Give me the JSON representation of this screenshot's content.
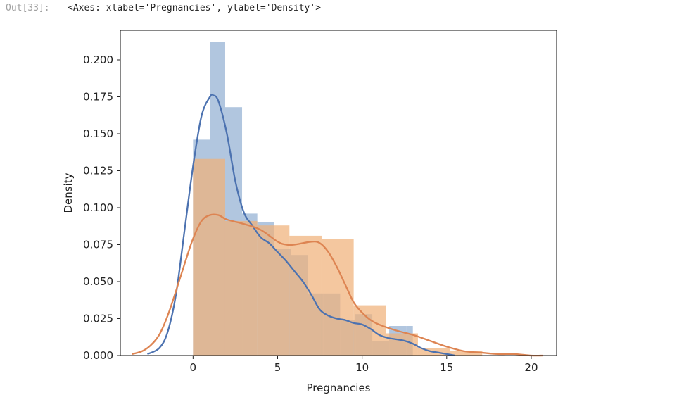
{
  "cell": {
    "prompt": "Out[33]:",
    "output": "<Axes: xlabel='Pregnancies', ylabel='Density'>"
  },
  "chart_data": {
    "type": "bar",
    "xlabel": "Pregnancies",
    "ylabel": "Density",
    "xlim": [
      -4.3,
      21.5
    ],
    "ylim": [
      0,
      0.22
    ],
    "xticks": [
      0,
      5,
      10,
      15,
      20
    ],
    "yticks": [
      0.0,
      0.025,
      0.05,
      0.075,
      0.1,
      0.125,
      0.15,
      0.175,
      0.2
    ],
    "grid": false,
    "legend": "none",
    "series": [
      {
        "color": "#4c72b0",
        "hist_color": "#a8c0dc",
        "hist_bins": [
          {
            "x0": 0.0,
            "x1": 1.0,
            "y": 0.146
          },
          {
            "x0": 1.0,
            "x1": 1.9,
            "y": 0.212
          },
          {
            "x0": 1.9,
            "x1": 2.9,
            "y": 0.168
          },
          {
            "x0": 2.9,
            "x1": 3.8,
            "y": 0.096
          },
          {
            "x0": 3.8,
            "x1": 4.8,
            "y": 0.09
          },
          {
            "x0": 4.8,
            "x1": 5.8,
            "y": 0.072
          },
          {
            "x0": 5.8,
            "x1": 6.8,
            "y": 0.068
          },
          {
            "x0": 6.8,
            "x1": 7.7,
            "y": 0.042
          },
          {
            "x0": 7.7,
            "x1": 8.7,
            "y": 0.042
          },
          {
            "x0": 8.7,
            "x1": 9.6,
            "y": 0.024
          },
          {
            "x0": 9.6,
            "x1": 10.6,
            "y": 0.028
          },
          {
            "x0": 10.6,
            "x1": 11.6,
            "y": 0.01
          },
          {
            "x0": 11.6,
            "x1": 12.6,
            "y": 0.02
          },
          {
            "x0": 12.6,
            "x1": 13.0,
            "y": 0.02
          }
        ],
        "kde_x": [
          -2.7,
          -2.0,
          -1.5,
          -1.0,
          -0.5,
          0.0,
          0.5,
          1.0,
          1.2,
          1.5,
          2.0,
          2.5,
          3.0,
          3.5,
          4.0,
          4.5,
          5.0,
          5.5,
          6.0,
          6.5,
          7.0,
          7.5,
          8.0,
          8.5,
          9.0,
          9.5,
          10.0,
          10.5,
          11.0,
          11.5,
          12.0,
          12.5,
          13.0,
          13.5,
          14.0,
          14.5,
          15.0,
          15.5
        ],
        "kde_y": [
          0.001,
          0.005,
          0.016,
          0.042,
          0.085,
          0.128,
          0.162,
          0.175,
          0.176,
          0.172,
          0.15,
          0.118,
          0.097,
          0.088,
          0.08,
          0.076,
          0.07,
          0.064,
          0.057,
          0.05,
          0.041,
          0.031,
          0.027,
          0.025,
          0.024,
          0.022,
          0.021,
          0.018,
          0.014,
          0.012,
          0.011,
          0.01,
          0.008,
          0.005,
          0.003,
          0.002,
          0.001,
          0.0
        ]
      },
      {
        "color": "#dd8452",
        "hist_color": "#f0b27a",
        "hist_bins": [
          {
            "x0": 0.0,
            "x1": 1.9,
            "y": 0.133
          },
          {
            "x0": 1.9,
            "x1": 3.8,
            "y": 0.091
          },
          {
            "x0": 3.8,
            "x1": 5.7,
            "y": 0.088
          },
          {
            "x0": 5.7,
            "x1": 7.6,
            "y": 0.081
          },
          {
            "x0": 7.6,
            "x1": 9.5,
            "y": 0.079
          },
          {
            "x0": 9.5,
            "x1": 11.4,
            "y": 0.034
          },
          {
            "x0": 11.4,
            "x1": 13.3,
            "y": 0.015
          },
          {
            "x0": 13.3,
            "x1": 15.2,
            "y": 0.005
          },
          {
            "x0": 15.2,
            "x1": 17.1,
            "y": 0.003
          }
        ],
        "kde_x": [
          -3.6,
          -3.0,
          -2.5,
          -2.0,
          -1.5,
          -1.0,
          -0.5,
          0.0,
          0.5,
          1.0,
          1.5,
          2.0,
          3.0,
          4.0,
          5.0,
          5.5,
          6.0,
          7.0,
          7.5,
          8.0,
          8.5,
          9.0,
          9.5,
          10.0,
          10.5,
          11.0,
          12.0,
          13.0,
          14.0,
          15.0,
          16.0,
          17.0,
          18.0,
          19.0,
          20.0,
          20.7
        ],
        "kde_y": [
          0.001,
          0.003,
          0.007,
          0.014,
          0.027,
          0.044,
          0.062,
          0.079,
          0.091,
          0.095,
          0.095,
          0.092,
          0.089,
          0.085,
          0.077,
          0.075,
          0.075,
          0.077,
          0.076,
          0.07,
          0.06,
          0.048,
          0.036,
          0.029,
          0.024,
          0.021,
          0.017,
          0.014,
          0.01,
          0.006,
          0.003,
          0.002,
          0.001,
          0.001,
          0.0,
          0.0
        ]
      }
    ]
  }
}
